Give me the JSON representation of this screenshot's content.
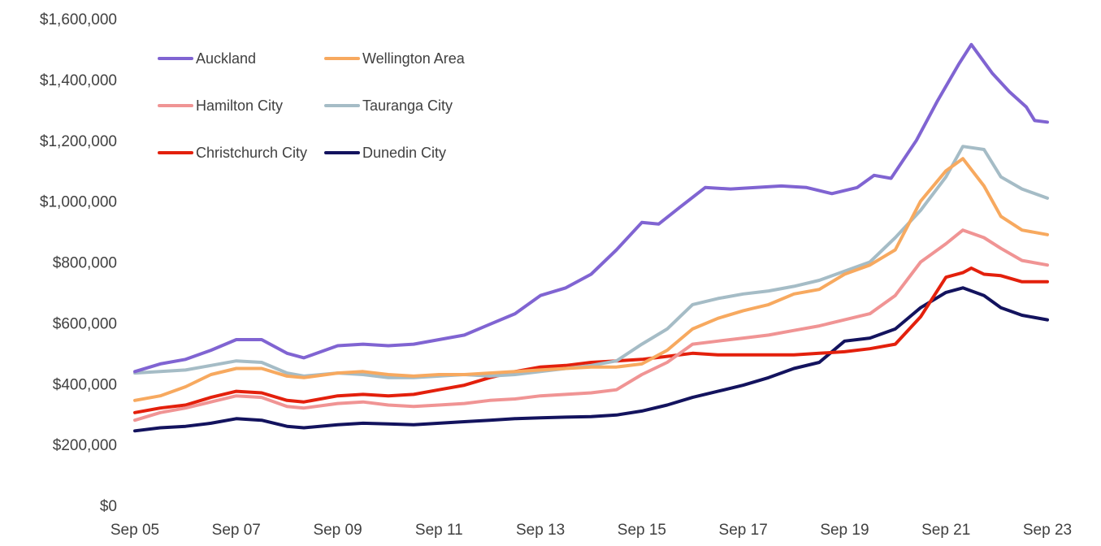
{
  "chart_data": {
    "type": "line",
    "title": "",
    "xlabel": "",
    "ylabel": "",
    "x_tick_labels": [
      "Sep 05",
      "Sep 07",
      "Sep 09",
      "Sep 11",
      "Sep 13",
      "Sep 15",
      "Sep 17",
      "Sep 19",
      "Sep 21",
      "Sep 23"
    ],
    "y_tick_labels": [
      "$0",
      "$200,000",
      "$400,000",
      "$600,000",
      "$800,000",
      "$1,000,000",
      "$1,200,000",
      "$1,400,000",
      "$1,600,000"
    ],
    "ylim": [
      0,
      1600000
    ],
    "xlim": [
      "2005-09",
      "2023-09"
    ],
    "grid": false,
    "legend_position": "top-left",
    "series": [
      {
        "name": "Auckland",
        "color": "#8064D2",
        "points": [
          [
            "2005-09",
            440000
          ],
          [
            "2006-03",
            465000
          ],
          [
            "2006-09",
            480000
          ],
          [
            "2007-03",
            510000
          ],
          [
            "2007-09",
            545000
          ],
          [
            "2008-03",
            545000
          ],
          [
            "2008-09",
            500000
          ],
          [
            "2009-01",
            485000
          ],
          [
            "2009-09",
            525000
          ],
          [
            "2010-03",
            530000
          ],
          [
            "2010-09",
            525000
          ],
          [
            "2011-03",
            530000
          ],
          [
            "2011-09",
            545000
          ],
          [
            "2012-03",
            560000
          ],
          [
            "2012-09",
            595000
          ],
          [
            "2013-03",
            630000
          ],
          [
            "2013-09",
            690000
          ],
          [
            "2014-03",
            715000
          ],
          [
            "2014-09",
            760000
          ],
          [
            "2015-03",
            840000
          ],
          [
            "2015-09",
            930000
          ],
          [
            "2016-01",
            925000
          ],
          [
            "2016-06",
            980000
          ],
          [
            "2016-12",
            1045000
          ],
          [
            "2017-06",
            1040000
          ],
          [
            "2017-12",
            1045000
          ],
          [
            "2018-06",
            1050000
          ],
          [
            "2018-12",
            1045000
          ],
          [
            "2019-06",
            1025000
          ],
          [
            "2019-12",
            1045000
          ],
          [
            "2020-04",
            1085000
          ],
          [
            "2020-08",
            1075000
          ],
          [
            "2021-02",
            1200000
          ],
          [
            "2021-07",
            1330000
          ],
          [
            "2021-12",
            1450000
          ],
          [
            "2022-03",
            1515000
          ],
          [
            "2022-08",
            1420000
          ],
          [
            "2022-12",
            1360000
          ],
          [
            "2023-04",
            1310000
          ],
          [
            "2023-06",
            1265000
          ],
          [
            "2023-09",
            1260000
          ]
        ]
      },
      {
        "name": "Wellington Area",
        "color": "#F7A95F",
        "points": [
          [
            "2005-09",
            345000
          ],
          [
            "2006-03",
            360000
          ],
          [
            "2006-09",
            390000
          ],
          [
            "2007-03",
            430000
          ],
          [
            "2007-09",
            450000
          ],
          [
            "2008-03",
            450000
          ],
          [
            "2008-09",
            425000
          ],
          [
            "2009-01",
            420000
          ],
          [
            "2009-09",
            435000
          ],
          [
            "2010-03",
            440000
          ],
          [
            "2010-09",
            430000
          ],
          [
            "2011-03",
            425000
          ],
          [
            "2011-09",
            430000
          ],
          [
            "2012-03",
            430000
          ],
          [
            "2012-09",
            435000
          ],
          [
            "2013-03",
            440000
          ],
          [
            "2013-09",
            445000
          ],
          [
            "2014-03",
            450000
          ],
          [
            "2014-09",
            455000
          ],
          [
            "2015-03",
            455000
          ],
          [
            "2015-09",
            465000
          ],
          [
            "2016-03",
            510000
          ],
          [
            "2016-09",
            580000
          ],
          [
            "2017-03",
            615000
          ],
          [
            "2017-09",
            640000
          ],
          [
            "2018-03",
            660000
          ],
          [
            "2018-09",
            695000
          ],
          [
            "2019-03",
            710000
          ],
          [
            "2019-09",
            760000
          ],
          [
            "2020-03",
            790000
          ],
          [
            "2020-09",
            840000
          ],
          [
            "2021-03",
            1000000
          ],
          [
            "2021-09",
            1100000
          ],
          [
            "2022-01",
            1140000
          ],
          [
            "2022-06",
            1050000
          ],
          [
            "2022-10",
            950000
          ],
          [
            "2023-03",
            905000
          ],
          [
            "2023-09",
            890000
          ]
        ]
      },
      {
        "name": "Hamilton City",
        "color": "#F09494",
        "points": [
          [
            "2005-09",
            280000
          ],
          [
            "2006-03",
            305000
          ],
          [
            "2006-09",
            320000
          ],
          [
            "2007-03",
            340000
          ],
          [
            "2007-09",
            360000
          ],
          [
            "2008-03",
            355000
          ],
          [
            "2008-09",
            325000
          ],
          [
            "2009-01",
            320000
          ],
          [
            "2009-09",
            335000
          ],
          [
            "2010-03",
            340000
          ],
          [
            "2010-09",
            330000
          ],
          [
            "2011-03",
            325000
          ],
          [
            "2011-09",
            330000
          ],
          [
            "2012-03",
            335000
          ],
          [
            "2012-09",
            345000
          ],
          [
            "2013-03",
            350000
          ],
          [
            "2013-09",
            360000
          ],
          [
            "2014-03",
            365000
          ],
          [
            "2014-09",
            370000
          ],
          [
            "2015-03",
            380000
          ],
          [
            "2015-09",
            430000
          ],
          [
            "2016-03",
            470000
          ],
          [
            "2016-09",
            530000
          ],
          [
            "2017-03",
            540000
          ],
          [
            "2017-09",
            550000
          ],
          [
            "2018-03",
            560000
          ],
          [
            "2018-09",
            575000
          ],
          [
            "2019-03",
            590000
          ],
          [
            "2019-09",
            610000
          ],
          [
            "2020-03",
            630000
          ],
          [
            "2020-09",
            690000
          ],
          [
            "2021-03",
            800000
          ],
          [
            "2021-09",
            860000
          ],
          [
            "2022-01",
            905000
          ],
          [
            "2022-06",
            880000
          ],
          [
            "2022-10",
            845000
          ],
          [
            "2023-03",
            805000
          ],
          [
            "2023-09",
            790000
          ]
        ]
      },
      {
        "name": "Tauranga City",
        "color": "#A5BCC6",
        "points": [
          [
            "2005-09",
            435000
          ],
          [
            "2006-03",
            440000
          ],
          [
            "2006-09",
            445000
          ],
          [
            "2007-03",
            460000
          ],
          [
            "2007-09",
            475000
          ],
          [
            "2008-03",
            470000
          ],
          [
            "2008-09",
            435000
          ],
          [
            "2009-01",
            425000
          ],
          [
            "2009-09",
            435000
          ],
          [
            "2010-03",
            430000
          ],
          [
            "2010-09",
            420000
          ],
          [
            "2011-03",
            420000
          ],
          [
            "2011-09",
            425000
          ],
          [
            "2012-03",
            430000
          ],
          [
            "2012-09",
            425000
          ],
          [
            "2013-03",
            430000
          ],
          [
            "2013-09",
            440000
          ],
          [
            "2014-03",
            450000
          ],
          [
            "2014-09",
            460000
          ],
          [
            "2015-03",
            475000
          ],
          [
            "2015-09",
            530000
          ],
          [
            "2016-03",
            580000
          ],
          [
            "2016-09",
            660000
          ],
          [
            "2017-03",
            680000
          ],
          [
            "2017-09",
            695000
          ],
          [
            "2018-03",
            705000
          ],
          [
            "2018-09",
            720000
          ],
          [
            "2019-03",
            740000
          ],
          [
            "2019-09",
            770000
          ],
          [
            "2020-03",
            800000
          ],
          [
            "2020-09",
            880000
          ],
          [
            "2021-03",
            970000
          ],
          [
            "2021-09",
            1080000
          ],
          [
            "2022-01",
            1180000
          ],
          [
            "2022-06",
            1170000
          ],
          [
            "2022-10",
            1080000
          ],
          [
            "2023-03",
            1040000
          ],
          [
            "2023-09",
            1010000
          ]
        ]
      },
      {
        "name": "Christchurch City",
        "color": "#E3200C",
        "points": [
          [
            "2005-09",
            305000
          ],
          [
            "2006-03",
            320000
          ],
          [
            "2006-09",
            330000
          ],
          [
            "2007-03",
            355000
          ],
          [
            "2007-09",
            375000
          ],
          [
            "2008-03",
            370000
          ],
          [
            "2008-09",
            345000
          ],
          [
            "2009-01",
            340000
          ],
          [
            "2009-09",
            360000
          ],
          [
            "2010-03",
            365000
          ],
          [
            "2010-09",
            360000
          ],
          [
            "2011-03",
            365000
          ],
          [
            "2011-09",
            380000
          ],
          [
            "2012-03",
            395000
          ],
          [
            "2012-09",
            420000
          ],
          [
            "2013-03",
            440000
          ],
          [
            "2013-09",
            455000
          ],
          [
            "2014-03",
            460000
          ],
          [
            "2014-09",
            470000
          ],
          [
            "2015-03",
            475000
          ],
          [
            "2015-09",
            480000
          ],
          [
            "2016-03",
            490000
          ],
          [
            "2016-09",
            500000
          ],
          [
            "2017-03",
            495000
          ],
          [
            "2017-09",
            495000
          ],
          [
            "2018-03",
            495000
          ],
          [
            "2018-09",
            495000
          ],
          [
            "2019-03",
            500000
          ],
          [
            "2019-09",
            505000
          ],
          [
            "2020-03",
            515000
          ],
          [
            "2020-09",
            530000
          ],
          [
            "2021-03",
            620000
          ],
          [
            "2021-09",
            750000
          ],
          [
            "2022-01",
            765000
          ],
          [
            "2022-03",
            780000
          ],
          [
            "2022-06",
            760000
          ],
          [
            "2022-10",
            755000
          ],
          [
            "2023-03",
            735000
          ],
          [
            "2023-09",
            735000
          ]
        ]
      },
      {
        "name": "Dunedin City",
        "color": "#13135E",
        "points": [
          [
            "2005-09",
            245000
          ],
          [
            "2006-03",
            255000
          ],
          [
            "2006-09",
            260000
          ],
          [
            "2007-03",
            270000
          ],
          [
            "2007-09",
            285000
          ],
          [
            "2008-03",
            280000
          ],
          [
            "2008-09",
            260000
          ],
          [
            "2009-01",
            255000
          ],
          [
            "2009-09",
            265000
          ],
          [
            "2010-03",
            270000
          ],
          [
            "2010-09",
            268000
          ],
          [
            "2011-03",
            265000
          ],
          [
            "2011-09",
            270000
          ],
          [
            "2012-03",
            275000
          ],
          [
            "2012-09",
            280000
          ],
          [
            "2013-03",
            285000
          ],
          [
            "2013-09",
            288000
          ],
          [
            "2014-03",
            290000
          ],
          [
            "2014-09",
            292000
          ],
          [
            "2015-03",
            297000
          ],
          [
            "2015-09",
            310000
          ],
          [
            "2016-03",
            330000
          ],
          [
            "2016-09",
            355000
          ],
          [
            "2017-03",
            375000
          ],
          [
            "2017-09",
            395000
          ],
          [
            "2018-03",
            420000
          ],
          [
            "2018-09",
            450000
          ],
          [
            "2019-03",
            470000
          ],
          [
            "2019-09",
            540000
          ],
          [
            "2020-03",
            550000
          ],
          [
            "2020-09",
            580000
          ],
          [
            "2021-03",
            650000
          ],
          [
            "2021-09",
            700000
          ],
          [
            "2022-01",
            715000
          ],
          [
            "2022-06",
            690000
          ],
          [
            "2022-10",
            650000
          ],
          [
            "2023-03",
            625000
          ],
          [
            "2023-09",
            610000
          ]
        ]
      }
    ]
  }
}
